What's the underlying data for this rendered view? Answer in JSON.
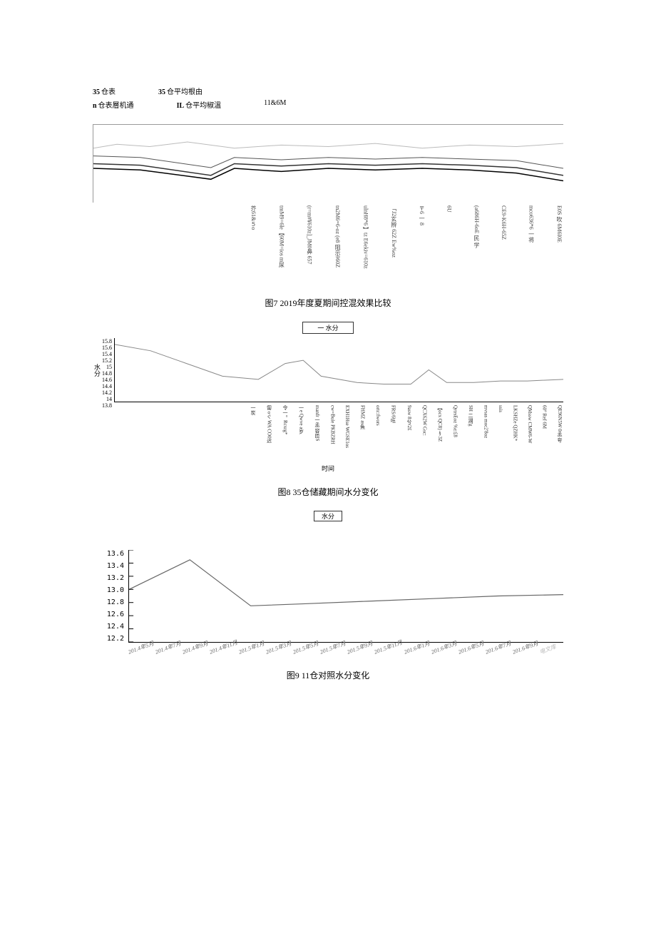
{
  "chart7": {
    "legend": {
      "r1c1_bold": "35",
      "r1c1_text": " 仓表",
      "r1c2_bold": "35",
      "r1c2_text": "仓平均根由",
      "r1c3": "",
      "r2c1_bold": "n",
      "r2c1_text": "仓表層机通",
      "r2c2_bold": "IL",
      "r2c2_text": "仓平均椒溫",
      "r2c3": "11&6M"
    },
    "series": [
      {
        "color": "#bbbbbb",
        "width": 1,
        "points": [
          [
            0,
            30
          ],
          [
            5,
            25
          ],
          [
            12,
            28
          ],
          [
            20,
            22
          ],
          [
            30,
            30
          ],
          [
            40,
            26
          ],
          [
            50,
            28
          ],
          [
            60,
            24
          ],
          [
            70,
            30
          ],
          [
            80,
            26
          ],
          [
            90,
            28
          ],
          [
            100,
            24
          ]
        ]
      },
      {
        "color": "#555555",
        "width": 1,
        "points": [
          [
            0,
            40
          ],
          [
            10,
            42
          ],
          [
            25,
            55
          ],
          [
            30,
            42
          ],
          [
            40,
            45
          ],
          [
            50,
            42
          ],
          [
            60,
            44
          ],
          [
            70,
            42
          ],
          [
            80,
            44
          ],
          [
            90,
            46
          ],
          [
            100,
            56
          ]
        ]
      },
      {
        "color": "#333333",
        "width": 1.5,
        "points": [
          [
            0,
            50
          ],
          [
            10,
            52
          ],
          [
            25,
            65
          ],
          [
            30,
            50
          ],
          [
            40,
            53
          ],
          [
            50,
            50
          ],
          [
            60,
            52
          ],
          [
            70,
            50
          ],
          [
            80,
            52
          ],
          [
            90,
            55
          ],
          [
            100,
            65
          ]
        ]
      },
      {
        "color": "#000000",
        "width": 1.5,
        "points": [
          [
            0,
            56
          ],
          [
            10,
            58
          ],
          [
            25,
            70
          ],
          [
            30,
            56
          ],
          [
            40,
            60
          ],
          [
            50,
            56
          ],
          [
            60,
            58
          ],
          [
            70,
            56
          ],
          [
            80,
            58
          ],
          [
            90,
            62
          ],
          [
            100,
            72
          ]
        ]
      }
    ],
    "xlabels": [
      "芥61&５o",
      "tmM9=6le【60M=ios m尿",
      "(r=m#¥610z]_JM0鼻 657",
      "tn2M6=6-oz  (e8 阻示960Z",
      "ulnH8*6 】tz  E6ekiv=610z",
      "「J2玄辨  62Z  Ew%oz",
      "〒6 一 8",
      "6U",
      "(a686H-6oE 民 学",
      "CE9-K6H-65Z",
      "mco636*6 一将",
      "E0S 吹 6M6I0E"
    ],
    "caption": "图7 2019年度夏期间控混效果比较"
  },
  "chart8": {
    "legend_text": "一 水分",
    "yaxis_label": "水分",
    "ylabels": [
      "15.8",
      "15.6",
      "15.4",
      "15.2",
      "15",
      "14.8",
      "14.6",
      "14.4",
      "14.2",
      "14",
      "13.8"
    ],
    "ylim": [
      13.8,
      15.8
    ],
    "series": {
      "color": "#888888",
      "width": 1,
      "points": [
        [
          0,
          15.6
        ],
        [
          8,
          15.4
        ],
        [
          16,
          15.0
        ],
        [
          24,
          14.6
        ],
        [
          32,
          14.5
        ],
        [
          38,
          15.0
        ],
        [
          42,
          15.1
        ],
        [
          46,
          14.6
        ],
        [
          54,
          14.4
        ],
        [
          60,
          14.35
        ],
        [
          66,
          14.35
        ],
        [
          70,
          14.8
        ],
        [
          74,
          14.4
        ],
        [
          80,
          14.4
        ],
        [
          86,
          14.45
        ],
        [
          92,
          14.45
        ],
        [
          100,
          14.5
        ]
      ]
    },
    "xlabels": [
      "一炭",
      "匐 oぐ WA CO0迟",
      "令一。Rcxrg*",
      "一e  Qwve a岁",
      "manfr一孟 容匝S",
      "cw=Bule  PKBZRH",
      "EXH1Hse  WGSE1os",
      "FHMZ as魚",
      "ortc:fwors",
      "FRS/6㕶",
      "9asw   8兮/2£",
      "QCX62W   Gsc:",
      "【ocx  QC8}§3Z",
      "QrtrsEoz %z:£8",
      "SH   二湖'g",
      "mvsas moc2'8oz",
      "ssis",
      "LKSHZe  QZHK*",
      "QMssw   CMW6-W",
      "60°  Ref  6M",
      "QE96N5W 0孟 夸"
    ],
    "time_label": "时间",
    "caption": "图8 35仓储藏期间水分变化"
  },
  "chart9": {
    "legend_text": "水分",
    "ylabels": [
      "13.6",
      "13.4",
      "13.2",
      "13.0",
      "12.8",
      "12.6",
      "12.4",
      "12.2"
    ],
    "ylim": [
      12.2,
      13.6
    ],
    "series": {
      "color": "#666666",
      "width": 1.2,
      "points": [
        [
          0,
          13.0
        ],
        [
          14,
          13.45
        ],
        [
          28,
          12.75
        ],
        [
          40,
          12.78
        ],
        [
          55,
          12.82
        ],
        [
          70,
          12.86
        ],
        [
          85,
          12.9
        ],
        [
          100,
          12.92
        ]
      ]
    },
    "xlabels": [
      "201.4年5月",
      "201.4年7月",
      "201.4年9月",
      "201.4年11月",
      "201.5年1月",
      "201.5年3月",
      "201.5年5月",
      "201.5年7月",
      "201.5年9月",
      "201.5年11月",
      "201.6年1月",
      "201.6年3月",
      "201.6年5月",
      "201.6年7月",
      "201.6年9月",
      "电文库"
    ],
    "caption": "图9 11仓对照水分变化"
  }
}
